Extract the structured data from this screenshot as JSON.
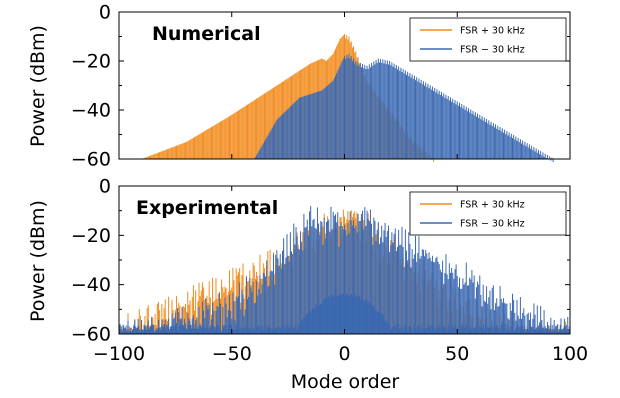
{
  "chart_data": [
    {
      "type": "bar",
      "panel": "top",
      "title": "Numerical",
      "ylabel": "Power (dBm)",
      "xlabel": "",
      "xlim": [
        -100,
        100
      ],
      "ylim": [
        -60,
        0
      ],
      "yticks": [
        0,
        -20,
        -40,
        -60
      ],
      "ytick_labels": [
        "0",
        "−20",
        "−40",
        "−60"
      ],
      "xticks": [
        -100,
        -50,
        0,
        50,
        100
      ],
      "xtick_labels": [],
      "legend_position": "top-right",
      "series": [
        {
          "name": "FSR + 30 kHz",
          "color": "#f28b1d",
          "description": "comb lines, approx. -60 dBm floor",
          "envelope_x": [
            -90,
            -70,
            -50,
            -30,
            -20,
            -15,
            -10,
            -8,
            -5,
            -2,
            0,
            2,
            5,
            10,
            20,
            30,
            40
          ],
          "envelope_y": [
            -60,
            -53,
            -42,
            -30,
            -24,
            -21,
            -19,
            -20,
            -17,
            -11,
            -9,
            -10,
            -16,
            -28,
            -40,
            -52,
            -60
          ]
        },
        {
          "name": "FSR − 30 kHz",
          "color": "#3a68b1",
          "envelope_x": [
            -40,
            -30,
            -20,
            -10,
            -5,
            -2,
            0,
            2,
            5,
            10,
            15,
            20,
            40,
            60,
            80,
            93
          ],
          "envelope_y": [
            -60,
            -44,
            -35,
            -32,
            -28,
            -22,
            -18,
            -17,
            -20,
            -22,
            -19,
            -20,
            -31,
            -42,
            -53,
            -60
          ]
        }
      ]
    },
    {
      "type": "bar",
      "panel": "bottom",
      "title": "Experimental",
      "ylabel": "Power (dBm)",
      "xlabel": "Mode order",
      "xlim": [
        -100,
        100
      ],
      "ylim": [
        -60,
        0
      ],
      "yticks": [
        0,
        -20,
        -40,
        -60
      ],
      "ytick_labels": [
        "0",
        "−20",
        "−40",
        "−60"
      ],
      "xticks": [
        -100,
        -50,
        0,
        50,
        100
      ],
      "xtick_labels": [
        "−100",
        "−50",
        "0",
        "50",
        "100"
      ],
      "legend_position": "top-right",
      "series": [
        {
          "name": "FSR + 30 kHz",
          "color": "#f28b1d",
          "envelope_x": [
            -100,
            -90,
            -80,
            -70,
            -60,
            -50,
            -40,
            -30,
            -20,
            -10,
            0,
            5,
            10,
            20,
            30,
            40,
            50,
            60,
            70,
            80,
            90,
            100
          ],
          "envelope_y": [
            -57,
            -53,
            -49,
            -45,
            -41,
            -37,
            -33,
            -28,
            -22,
            -15,
            -11,
            -9,
            -14,
            -22,
            -30,
            -38,
            -45,
            -50,
            -54,
            -57,
            -58,
            -58
          ],
          "floor": -58
        },
        {
          "name": "FSR − 30 kHz",
          "color": "#3a68b1",
          "envelope_x": [
            -100,
            -90,
            -80,
            -70,
            -60,
            -50,
            -40,
            -30,
            -20,
            -15,
            -10,
            -5,
            0,
            5,
            10,
            15,
            20,
            30,
            40,
            50,
            60,
            70,
            80,
            90,
            100
          ],
          "envelope_y": [
            -58,
            -57,
            -55,
            -52,
            -49,
            -44,
            -38,
            -28,
            -16,
            -12,
            -12,
            -10,
            -13,
            -15,
            -10,
            -14,
            -18,
            -22,
            -28,
            -33,
            -38,
            -44,
            -49,
            -54,
            -57
          ],
          "floor": -59,
          "center_hump_peak": -44
        }
      ]
    }
  ]
}
